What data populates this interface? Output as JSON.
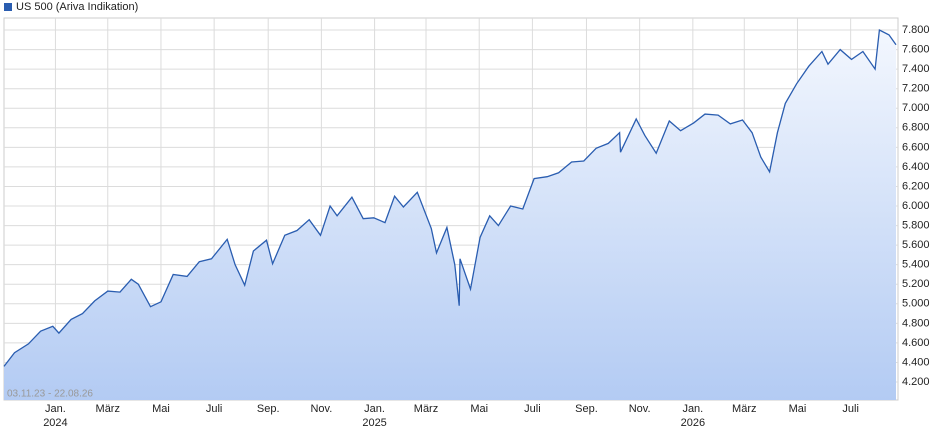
{
  "chart_data": {
    "type": "area",
    "title": "US 500 (Ariva Indikation)",
    "range_label": "03.11.23 - 22.08.26",
    "color": "#2a5db0",
    "grid": true,
    "xlim": [
      "2023-11-03",
      "2026-08-22"
    ],
    "ylim": [
      4016,
      7923
    ],
    "yticks": [
      {
        "value": 4200,
        "label": "4.200"
      },
      {
        "value": 4400,
        "label": "4.400"
      },
      {
        "value": 4600,
        "label": "4.600"
      },
      {
        "value": 4800,
        "label": "4.800"
      },
      {
        "value": 5000,
        "label": "5.000"
      },
      {
        "value": 5200,
        "label": "5.200"
      },
      {
        "value": 5400,
        "label": "5.400"
      },
      {
        "value": 5600,
        "label": "5.600"
      },
      {
        "value": 5800,
        "label": "5.800"
      },
      {
        "value": 6000,
        "label": "6.000"
      },
      {
        "value": 6200,
        "label": "6.200"
      },
      {
        "value": 6400,
        "label": "6.400"
      },
      {
        "value": 6600,
        "label": "6.600"
      },
      {
        "value": 6800,
        "label": "6.800"
      },
      {
        "value": 7000,
        "label": "7.000"
      },
      {
        "value": 7200,
        "label": "7.200"
      },
      {
        "value": 7400,
        "label": "7.400"
      },
      {
        "value": 7600,
        "label": "7.600"
      },
      {
        "value": 7800,
        "label": "7.800"
      }
    ],
    "xticks": [
      {
        "value": "2024-01-01",
        "label": "Jan.",
        "year": "2024"
      },
      {
        "value": "2024-03-01",
        "label": "März"
      },
      {
        "value": "2024-05-01",
        "label": "Mai"
      },
      {
        "value": "2024-07-01",
        "label": "Juli"
      },
      {
        "value": "2024-09-01",
        "label": "Sep."
      },
      {
        "value": "2024-11-01",
        "label": "Nov."
      },
      {
        "value": "2025-01-01",
        "label": "Jan.",
        "year": "2025"
      },
      {
        "value": "2025-03-01",
        "label": "März"
      },
      {
        "value": "2025-05-01",
        "label": "Mai"
      },
      {
        "value": "2025-07-01",
        "label": "Juli"
      },
      {
        "value": "2025-09-01",
        "label": "Sep."
      },
      {
        "value": "2025-11-01",
        "label": "Nov."
      },
      {
        "value": "2026-01-01",
        "label": "Jan.",
        "year": "2026"
      },
      {
        "value": "2026-03-01",
        "label": "März"
      },
      {
        "value": "2026-05-01",
        "label": "Mai"
      },
      {
        "value": "2026-07-01",
        "label": "Juli"
      }
    ],
    "x": [
      "2023-11-03",
      "2023-11-15",
      "2023-12-01",
      "2023-12-15",
      "2023-12-29",
      "2024-01-05",
      "2024-01-19",
      "2024-02-01",
      "2024-02-15",
      "2024-03-01",
      "2024-03-15",
      "2024-03-28",
      "2024-04-05",
      "2024-04-19",
      "2024-05-01",
      "2024-05-15",
      "2024-05-31",
      "2024-06-14",
      "2024-06-28",
      "2024-07-16",
      "2024-07-25",
      "2024-08-05",
      "2024-08-15",
      "2024-08-30",
      "2024-09-06",
      "2024-09-20",
      "2024-10-04",
      "2024-10-18",
      "2024-10-31",
      "2024-11-11",
      "2024-11-19",
      "2024-12-06",
      "2024-12-19",
      "2024-12-31",
      "2025-01-13",
      "2025-01-24",
      "2025-02-03",
      "2025-02-19",
      "2025-03-07",
      "2025-03-13",
      "2025-03-25",
      "2025-04-03",
      "2025-04-08",
      "2025-04-09",
      "2025-04-21",
      "2025-05-02",
      "2025-05-13",
      "2025-05-23",
      "2025-06-06",
      "2025-06-20",
      "2025-07-03",
      "2025-07-18",
      "2025-07-31",
      "2025-08-15",
      "2025-08-29",
      "2025-09-12",
      "2025-09-26",
      "2025-10-09",
      "2025-10-10",
      "2025-10-28",
      "2025-11-07",
      "2025-11-20",
      "2025-12-05",
      "2025-12-18",
      "2026-01-02",
      "2026-01-15",
      "2026-01-30",
      "2026-02-13",
      "2026-02-27",
      "2026-03-10",
      "2026-03-20",
      "2026-03-30",
      "2026-04-08",
      "2026-04-17",
      "2026-04-30",
      "2026-05-14",
      "2026-05-29",
      "2026-06-05",
      "2026-06-19",
      "2026-07-02",
      "2026-07-15",
      "2026-07-29",
      "2026-08-03",
      "2026-08-14",
      "2026-08-22"
    ],
    "series": [
      {
        "name": "US 500 (Ariva Indikation)",
        "color": "#2a5db0",
        "values": [
          4360,
          4500,
          4590,
          4720,
          4770,
          4700,
          4840,
          4900,
          5030,
          5130,
          5120,
          5250,
          5200,
          4970,
          5020,
          5300,
          5280,
          5430,
          5460,
          5660,
          5400,
          5190,
          5540,
          5650,
          5410,
          5700,
          5750,
          5860,
          5700,
          6000,
          5900,
          6090,
          5870,
          5880,
          5830,
          6100,
          5990,
          6140,
          5770,
          5520,
          5780,
          5400,
          4980,
          5460,
          5150,
          5680,
          5900,
          5800,
          6000,
          5970,
          6280,
          6300,
          6340,
          6450,
          6460,
          6590,
          6640,
          6750,
          6550,
          6890,
          6720,
          6540,
          6870,
          6770,
          6850,
          6940,
          6930,
          6840,
          6880,
          6750,
          6500,
          6350,
          6750,
          7050,
          7250,
          7430,
          7580,
          7450,
          7600,
          7500,
          7580,
          7400,
          7800,
          7750,
          7650
        ]
      }
    ]
  }
}
